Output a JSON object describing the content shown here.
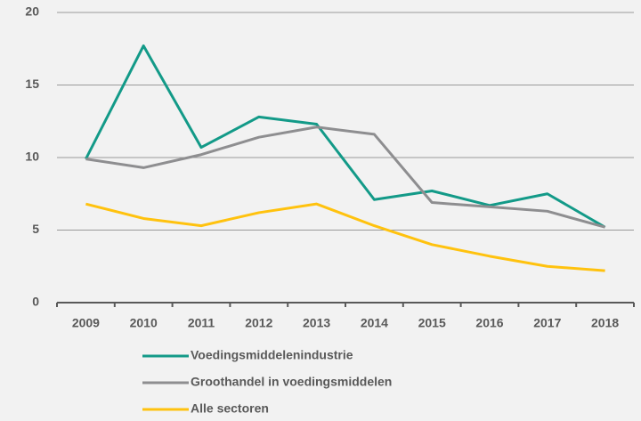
{
  "chart_data": {
    "type": "line",
    "categories": [
      "2009",
      "2010",
      "2011",
      "2012",
      "2013",
      "2014",
      "2015",
      "2016",
      "2017",
      "2018"
    ],
    "series": [
      {
        "name": "Voedingsmiddelenindustrie",
        "color": "#139a88",
        "values": [
          9.9,
          17.7,
          10.7,
          12.8,
          12.3,
          7.1,
          7.7,
          6.7,
          7.5,
          5.2
        ]
      },
      {
        "name": "Groothandel in voedingsmiddelen",
        "color": "#8e8e90",
        "values": [
          9.9,
          9.3,
          10.2,
          11.4,
          12.1,
          11.6,
          6.9,
          6.6,
          6.3,
          5.2
        ]
      },
      {
        "name": "Alle sectoren",
        "color": "#ffc20e",
        "values": [
          6.8,
          5.8,
          5.3,
          6.2,
          6.8,
          5.3,
          4.0,
          3.2,
          2.5,
          2.2
        ]
      }
    ],
    "ylim": [
      0,
      20
    ],
    "yticks": [
      0,
      5,
      10,
      15,
      20
    ],
    "grid": true
  }
}
